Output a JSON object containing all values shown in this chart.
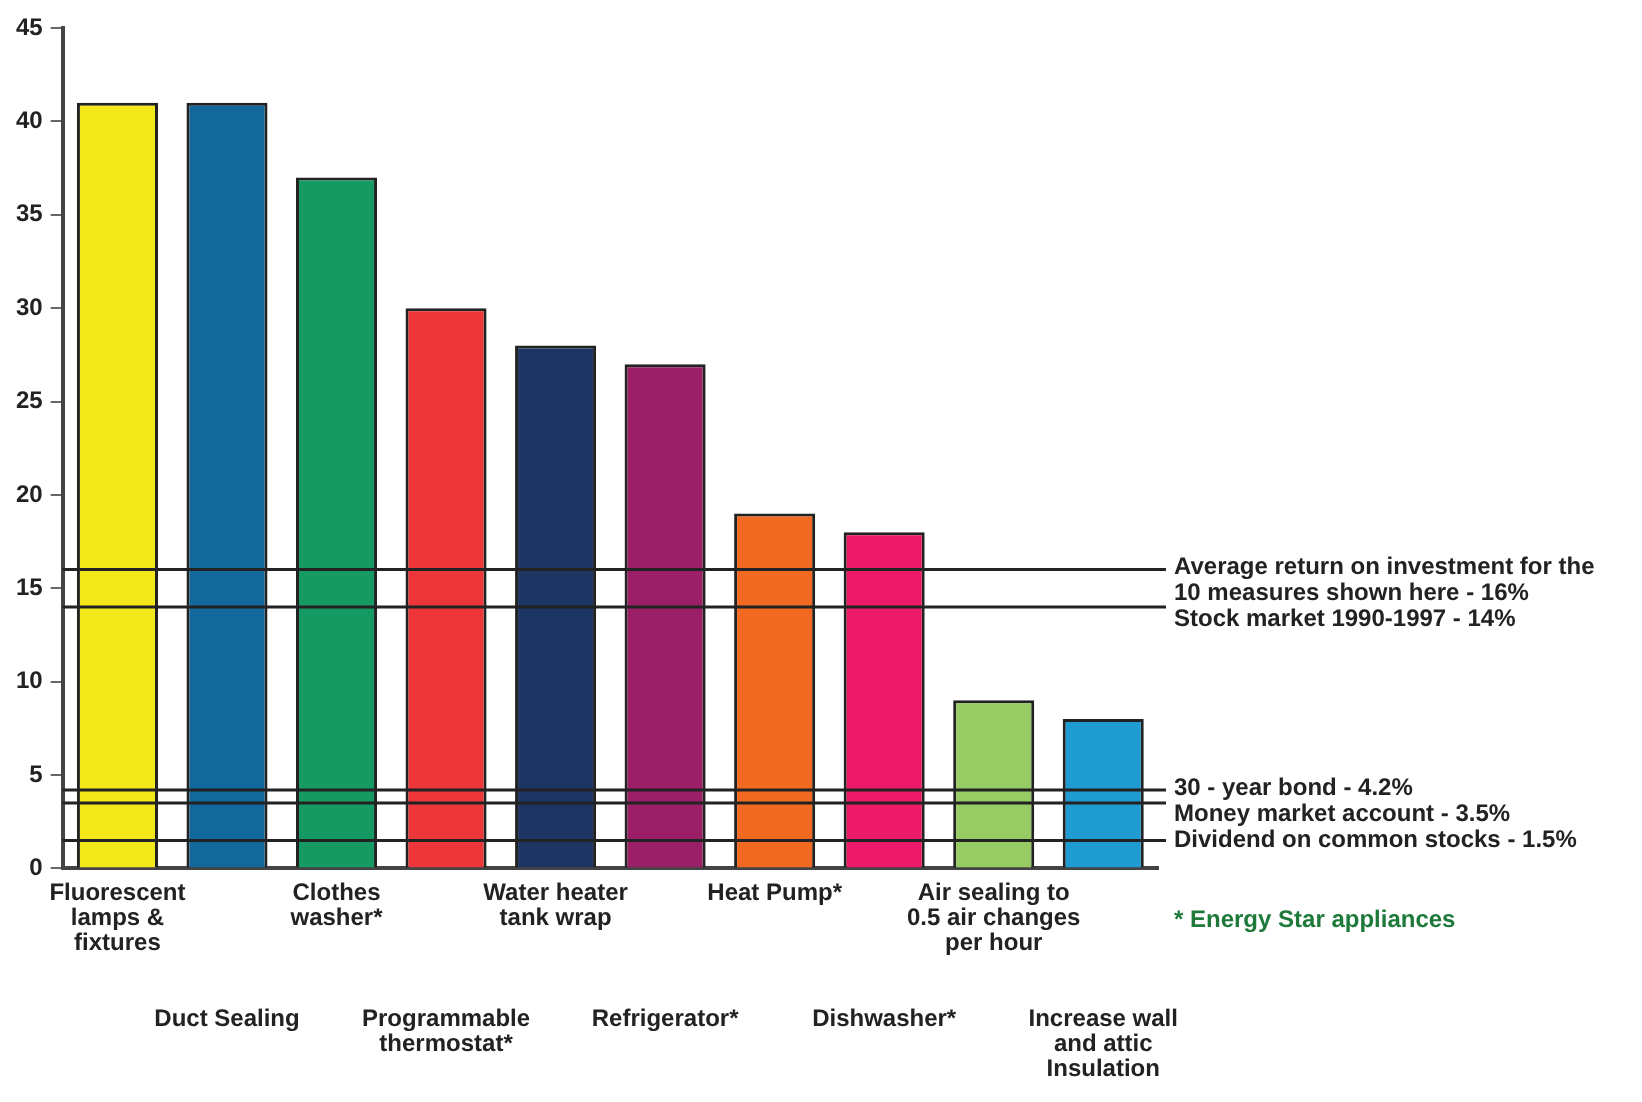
{
  "chart_data": {
    "type": "bar",
    "categories": [
      "Fluorescent lamps & fixtures",
      "Duct Sealing",
      "Clothes washer*",
      "Programmable thermostat*",
      "Water heater tank wrap",
      "Refrigerator*",
      "Heat Pump*",
      "Dishwasher*",
      "Air sealing to 0.5 air changes per hour",
      "Increase wall and attic Insulation"
    ],
    "values": [
      41,
      41,
      37,
      30,
      28,
      27,
      19,
      18,
      9,
      8
    ],
    "colors": [
      "#f2e81a",
      "#12679b",
      "#159a64",
      "#ec363a",
      "#1c3562",
      "#9a1f66",
      "#f26a21",
      "#ec1a68",
      "#97cc64",
      "#1e9bd1"
    ],
    "ylim": [
      0,
      45
    ],
    "yticks": [
      0,
      5,
      10,
      15,
      20,
      25,
      30,
      35,
      40,
      45
    ],
    "grid": false,
    "ref_lines": [
      {
        "axis": "y",
        "value": 16,
        "label": "Average return on investment for the 10 measures shown here - 16%"
      },
      {
        "axis": "y",
        "value": 14,
        "label": "Stock market 1990-1997 - 14%"
      },
      {
        "axis": "y",
        "value": 4.2,
        "label": "30 - year bond - 4.2%"
      },
      {
        "axis": "y",
        "value": 3.5,
        "label": "Money market account - 3.5%"
      },
      {
        "axis": "y",
        "value": 1.5,
        "label": "Dividend on common stocks - 1.5%"
      }
    ],
    "annotations": [
      "* Energy Star appliances"
    ]
  }
}
